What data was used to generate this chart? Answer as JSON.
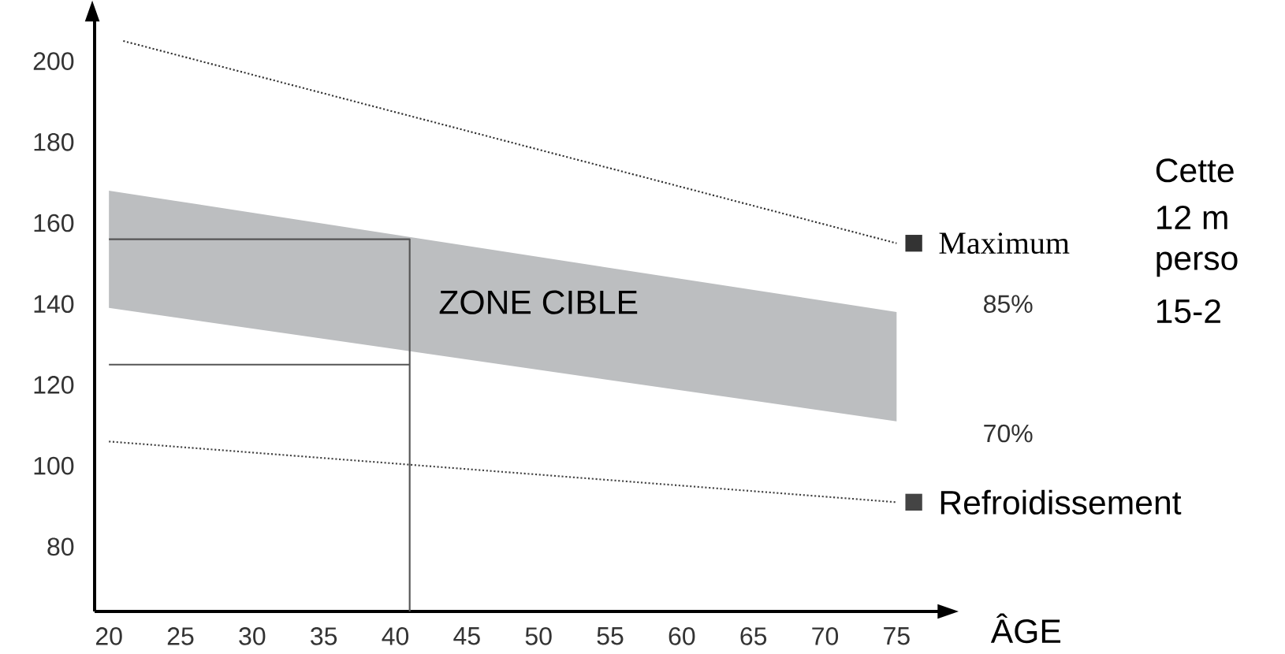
{
  "chart_data": {
    "type": "line",
    "xlabel": "ÂGE",
    "xlim": [
      19,
      79
    ],
    "ylim": [
      64,
      212
    ],
    "xticks": [
      20,
      25,
      30,
      35,
      40,
      45,
      50,
      55,
      60,
      65,
      70,
      75
    ],
    "yticks": [
      80,
      100,
      120,
      140,
      160,
      180,
      200
    ],
    "grid": false,
    "legend": "right",
    "series": [
      {
        "color": "#bcbec0",
        "x": [
          20,
          75
        ],
        "values": [
          null,
          null
        ],
        "lower": [
          139,
          111
        ],
        "upper": [
          168,
          138
        ]
      },
      {
        "name": "Maximum",
        "line_style": "dotted",
        "color": "#333333",
        "x": [
          21,
          75
        ],
        "values": [
          205,
          155
        ]
      },
      {
        "name": "Refroidissement",
        "line_style": "dotted",
        "color": "#444444",
        "x": [
          20,
          75
        ],
        "values": [
          106,
          91
        ]
      },
      {
        "line_style": "solid",
        "color": "#555555",
        "x": [
          20,
          41,
          41
        ],
        "values": [
          156,
          156,
          64
        ]
      },
      {
        "line_style": "solid",
        "color": "#555555",
        "x": [
          20,
          41
        ],
        "values": [
          125,
          125
        ]
      }
    ],
    "annotations": [
      "ZONE CIBLE",
      "85%",
      "70%",
      "Cette",
      "12 m",
      "perso",
      "15-2"
    ]
  }
}
